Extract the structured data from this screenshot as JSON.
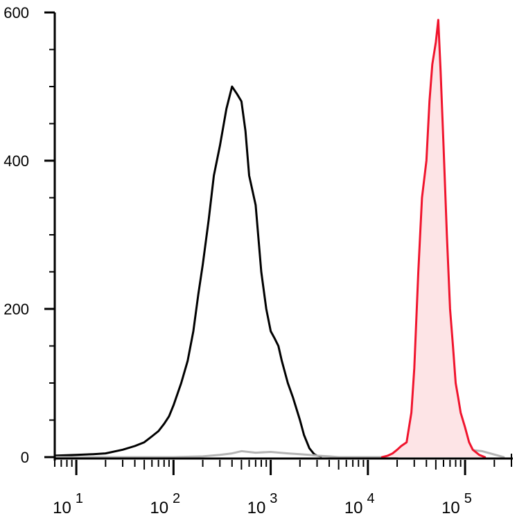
{
  "chart_data": {
    "type": "area",
    "title": "",
    "xlabel": "",
    "ylabel": "",
    "x_scale": "log",
    "xlim": [
      6,
      300000
    ],
    "ylim": [
      0,
      600
    ],
    "y_ticks": [
      0,
      200,
      400,
      600
    ],
    "y_tick_labels": [
      "0",
      "200",
      "400",
      "600"
    ],
    "x_ticks": [
      10,
      100,
      1000,
      10000,
      100000
    ],
    "x_tick_labels": [
      {
        "base": "10",
        "exp": "1"
      },
      {
        "base": "10",
        "exp": "2"
      },
      {
        "base": "10",
        "exp": "3"
      },
      {
        "base": "10",
        "exp": "4"
      },
      {
        "base": "10",
        "exp": "5"
      }
    ],
    "grid": false,
    "legend": false,
    "series": [
      {
        "color": "#000000",
        "fill": "none",
        "x": [
          6,
          10,
          15,
          20,
          30,
          40,
          50,
          60,
          70,
          80,
          90,
          100,
          120,
          140,
          160,
          180,
          200,
          230,
          260,
          300,
          350,
          400,
          450,
          500,
          550,
          600,
          700,
          800,
          900,
          1000,
          1100,
          1200,
          1300,
          1500,
          1700,
          2000,
          2200,
          2500,
          2800,
          3000,
          3300
        ],
        "y": [
          2,
          3,
          4,
          5,
          10,
          15,
          20,
          28,
          35,
          45,
          55,
          70,
          100,
          130,
          170,
          220,
          260,
          320,
          380,
          420,
          470,
          500,
          490,
          480,
          440,
          380,
          340,
          250,
          200,
          170,
          160,
          150,
          130,
          100,
          80,
          50,
          30,
          12,
          4,
          2,
          1
        ]
      },
      {
        "color": "#b4b4b4",
        "fill": "none",
        "x": [
          6,
          50,
          100,
          200,
          300,
          400,
          500,
          700,
          1000,
          1500,
          2000,
          2500,
          3000,
          4000,
          5000,
          7000,
          10000,
          15000,
          20000,
          30000,
          50000,
          80000,
          150000,
          250000
        ],
        "y": [
          0,
          0,
          0,
          1,
          3,
          5,
          8,
          6,
          7,
          5,
          4,
          3,
          2,
          1,
          0,
          0,
          0,
          0,
          1,
          5,
          10,
          12,
          8,
          0
        ]
      },
      {
        "color": "#f0142d",
        "fill": "#fde4e6",
        "x": [
          14000,
          16000,
          18000,
          20000,
          22000,
          25000,
          28000,
          30000,
          33000,
          36000,
          40000,
          43000,
          46000,
          50000,
          53000,
          56000,
          60000,
          65000,
          70000,
          75000,
          80000,
          85000,
          90000,
          100000,
          110000,
          120000,
          140000,
          160000
        ],
        "y": [
          0,
          2,
          5,
          10,
          15,
          20,
          60,
          120,
          250,
          350,
          400,
          480,
          530,
          560,
          590,
          520,
          420,
          300,
          200,
          150,
          100,
          80,
          60,
          40,
          20,
          10,
          3,
          0
        ]
      }
    ]
  }
}
